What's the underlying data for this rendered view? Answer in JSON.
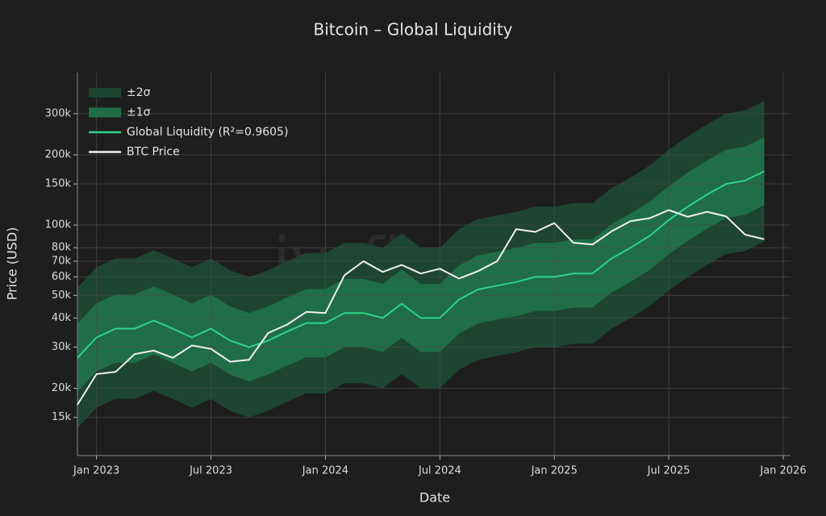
{
  "chart_data": {
    "type": "line",
    "title": "Bitcoin – Global Liquidity",
    "xlabel": "Date",
    "ylabel": "Price (USD)",
    "watermark": "jv_finance",
    "log_y": true,
    "grid": true,
    "legend": "upper left",
    "x": [
      "2022-12",
      "2023-01",
      "2023-02",
      "2023-03",
      "2023-04",
      "2023-05",
      "2023-06",
      "2023-07",
      "2023-08",
      "2023-09",
      "2023-10",
      "2023-11",
      "2023-12",
      "2024-01",
      "2024-02",
      "2024-03",
      "2024-04",
      "2024-05",
      "2024-06",
      "2024-07",
      "2024-08",
      "2024-09",
      "2024-10",
      "2024-11",
      "2024-12",
      "2025-01",
      "2025-02",
      "2025-03",
      "2025-04",
      "2025-05",
      "2025-06",
      "2025-07",
      "2025-08",
      "2025-09",
      "2025-10",
      "2025-11",
      "2025-12"
    ],
    "xlim": [
      "2022-12",
      "2026-01"
    ],
    "xticks": [
      {
        "value": "2023-01",
        "label": "Jan 2023"
      },
      {
        "value": "2023-07",
        "label": "Jul 2023"
      },
      {
        "value": "2024-01",
        "label": "Jan 2024"
      },
      {
        "value": "2024-07",
        "label": "Jul 2024"
      },
      {
        "value": "2025-01",
        "label": "Jan 2025"
      },
      {
        "value": "2025-07",
        "label": "Jul 2025"
      },
      {
        "value": "2026-01",
        "label": "Jan 2026"
      }
    ],
    "ylim": [
      10300,
      450000
    ],
    "yticks": [
      {
        "value": 15000,
        "label": "15k"
      },
      {
        "value": 20000,
        "label": "20k"
      },
      {
        "value": 30000,
        "label": "30k"
      },
      {
        "value": 40000,
        "label": "40k"
      },
      {
        "value": 50000,
        "label": "50k"
      },
      {
        "value": 60000,
        "label": "60k"
      },
      {
        "value": 70000,
        "label": "70k"
      },
      {
        "value": 80000,
        "label": "80k"
      },
      {
        "value": 100000,
        "label": "100k"
      },
      {
        "value": 150000,
        "label": "150k"
      },
      {
        "value": 200000,
        "label": "200k"
      },
      {
        "value": 300000,
        "label": "300k"
      }
    ],
    "series": [
      {
        "name": "±2σ",
        "kind": "band",
        "color": "#1d4532",
        "upper": [
          54000,
          66000,
          72000,
          72000,
          78000,
          72000,
          66000,
          72000,
          64000,
          60000,
          64000,
          70000,
          76000,
          76000,
          84000,
          84000,
          80000,
          92000,
          80000,
          80000,
          96000,
          106000,
          110000,
          114000,
          120000,
          120000,
          124000,
          124000,
          144000,
          160000,
          180000,
          210000,
          240000,
          270000,
          300000,
          310000,
          340000
        ],
        "lower": [
          13500,
          16500,
          18000,
          18000,
          19500,
          18000,
          16500,
          18000,
          16000,
          15000,
          16000,
          17500,
          19000,
          19000,
          21000,
          21000,
          20000,
          23000,
          20000,
          20000,
          24000,
          26500,
          27500,
          28500,
          30000,
          30000,
          31000,
          31000,
          36000,
          40000,
          45000,
          52500,
          60000,
          67500,
          75000,
          77500,
          85000
        ]
      },
      {
        "name": "±1σ",
        "kind": "band",
        "color": "#1f6e48",
        "upper": [
          37800,
          46200,
          50400,
          50400,
          54600,
          50400,
          46200,
          50400,
          44800,
          42000,
          44800,
          49000,
          53200,
          53200,
          58800,
          58800,
          56000,
          64400,
          56000,
          56000,
          67200,
          74200,
          77000,
          79800,
          84000,
          84000,
          86800,
          86800,
          100800,
          112000,
          126000,
          147000,
          168000,
          189000,
          210000,
          217000,
          238000
        ],
        "lower": [
          19300,
          23600,
          25700,
          25700,
          27900,
          25700,
          23600,
          25700,
          22900,
          21400,
          22900,
          25000,
          27100,
          27100,
          30000,
          30000,
          28600,
          32900,
          28600,
          28600,
          34300,
          37900,
          39300,
          40700,
          42900,
          42900,
          44300,
          44300,
          51400,
          57100,
          64300,
          75000,
          85700,
          96400,
          107100,
          110700,
          121400
        ]
      },
      {
        "name": "Global Liquidity (R²=0.9605)",
        "kind": "line",
        "color": "#2fd38a",
        "values": [
          27000,
          33000,
          36000,
          36000,
          39000,
          36000,
          33000,
          36000,
          32000,
          30000,
          32000,
          35000,
          38000,
          38000,
          42000,
          42000,
          40000,
          46000,
          40000,
          40000,
          48000,
          53000,
          55000,
          57000,
          60000,
          60000,
          62000,
          62000,
          72000,
          80000,
          90000,
          105000,
          120000,
          135000,
          150000,
          155000,
          170000
        ]
      },
      {
        "name": "BTC Price",
        "kind": "line",
        "color": "#f2f2f2",
        "values": [
          17000,
          23000,
          23500,
          28000,
          29000,
          27000,
          30500,
          29500,
          26000,
          26500,
          34500,
          37500,
          42500,
          42000,
          61000,
          70000,
          63000,
          67500,
          62000,
          65000,
          59000,
          63500,
          70000,
          96000,
          93500,
          102000,
          84000,
          82500,
          94000,
          104000,
          107000,
          116000,
          108500,
          114000,
          109000,
          91000,
          87000
        ]
      }
    ]
  }
}
